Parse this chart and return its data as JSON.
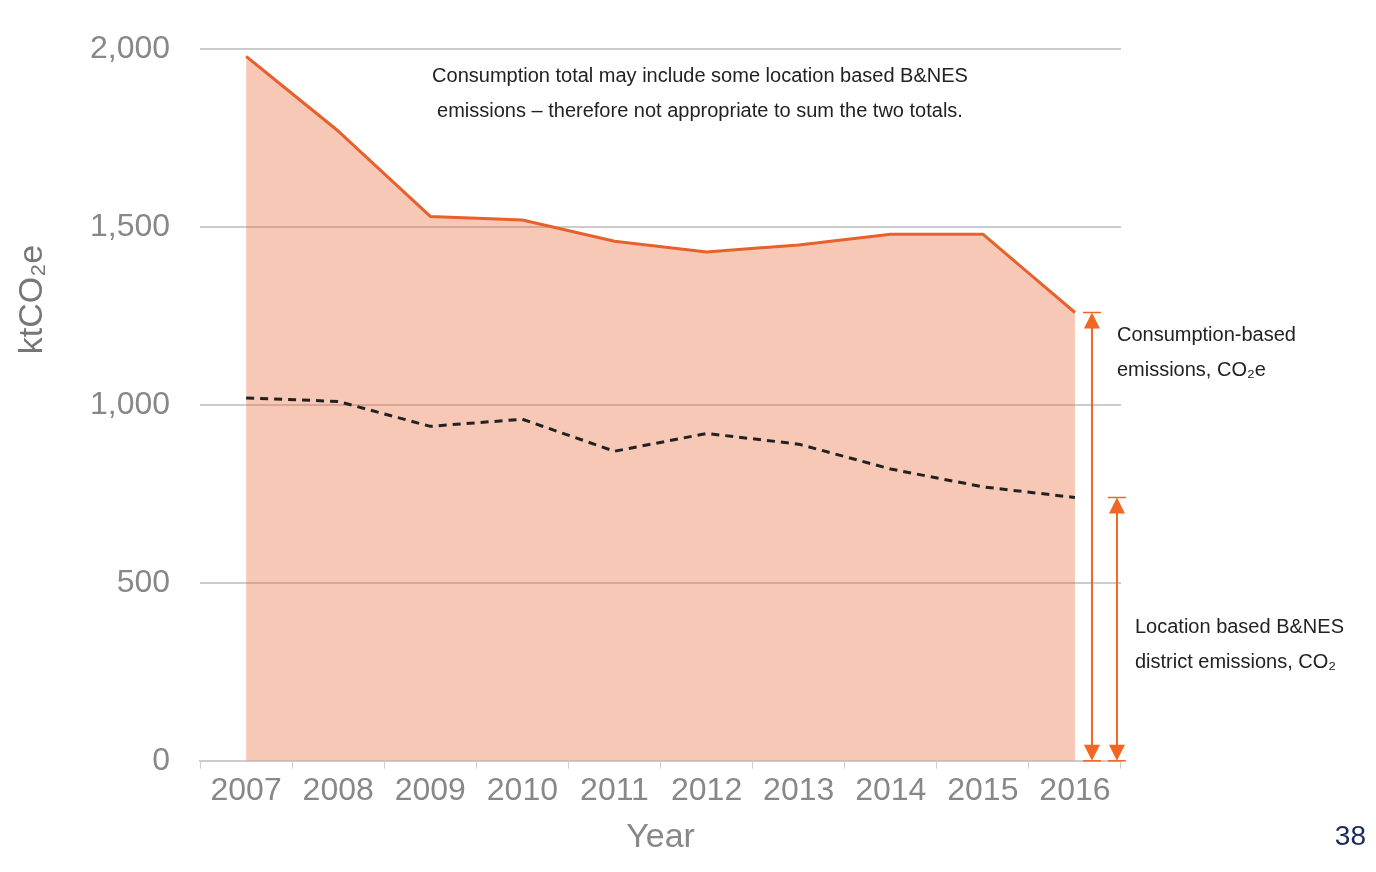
{
  "chart_data": {
    "type": "area",
    "xlabel": "Year",
    "ylabel": "ktCO₂e",
    "categories": [
      "2007",
      "2008",
      "2009",
      "2010",
      "2011",
      "2012",
      "2013",
      "2014",
      "2015",
      "2016"
    ],
    "series": [
      {
        "name": "Consumption-based emissions, CO₂e",
        "color": "#e8602c",
        "values": [
          1980,
          1770,
          1530,
          1520,
          1460,
          1430,
          1450,
          1480,
          1480,
          1260
        ]
      },
      {
        "name": "Location based B&NES district emissions, CO₂",
        "type": "line",
        "color": "#222222",
        "line_style": "dashed",
        "values": [
          1020,
          1010,
          940,
          960,
          870,
          920,
          890,
          820,
          770,
          740
        ]
      }
    ],
    "ylim": [
      0,
      2000
    ],
    "yticks": [
      {
        "value": 0,
        "label": "0"
      },
      {
        "value": 500,
        "label": "500"
      },
      {
        "value": 1000,
        "label": "1,000"
      },
      {
        "value": 1500,
        "label": "1,500"
      },
      {
        "value": 2000,
        "label": "2,000"
      }
    ],
    "grid": "y",
    "legend": false,
    "marker": "none",
    "annotations": [
      "Consumption total may include some location based B&NES emissions –  therefore not appropriate to sum the two totals.",
      "38"
    ]
  }
}
